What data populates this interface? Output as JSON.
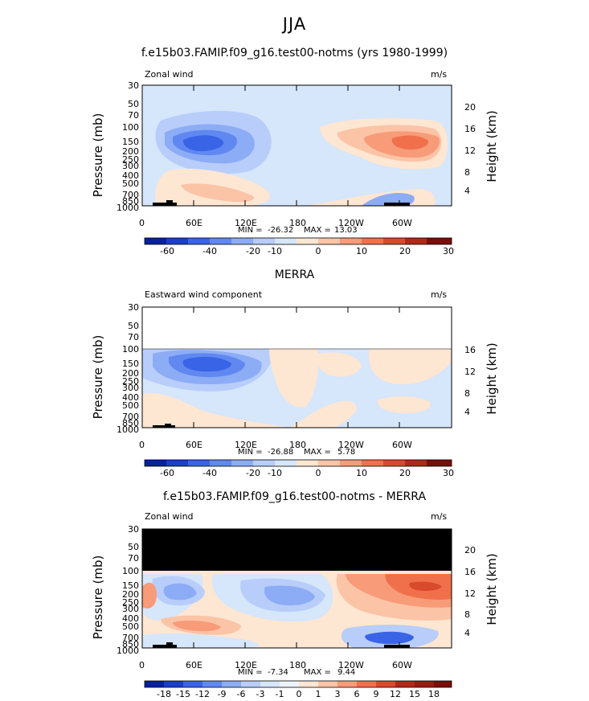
{
  "title": "JJA",
  "x_ticks": [
    "0",
    "60E",
    "120E",
    "180",
    "120W",
    "60W"
  ],
  "colors": {
    "dn60": "#08219c",
    "dn50": "#1c3fc8",
    "dn40": "#3a64e6",
    "dn30": "#6088f0",
    "dn20": "#8cacf6",
    "dn10": "#b8cdfa",
    "dn0": "#d6e6fb",
    "up0": "#fde6d2",
    "up10": "#fbc4a6",
    "up20": "#f79b78",
    "up30": "#f0704c",
    "up40": "#d84a2c",
    "up50": "#b02a18",
    "up60": "#7a0e0a"
  },
  "panels": [
    {
      "title": "f.e15b03.FAMIP.f09_g16.test00-notms (yrs 1980-1999)",
      "left_text": "Zonal wind",
      "right_text": "m/s",
      "y_label": "Pressure (mb)",
      "y2_label": "Height (km)",
      "p_ticks": [
        "30",
        "50",
        "70",
        "100",
        "150",
        "200",
        "250",
        "300",
        "400",
        "500",
        "700",
        "850",
        "1000"
      ],
      "h_ticks": [
        "20",
        "16",
        "12",
        "8",
        "4"
      ],
      "min_label": "MIN =",
      "min_value": "-26.32",
      "max_label": "MAX =",
      "max_value": "13.03",
      "colorbar": [
        "-60",
        "-40",
        "-20",
        "-10",
        "0",
        "10",
        "20",
        "30"
      ],
      "chart_data": {
        "type": "heatmap",
        "variable": "Zonal wind",
        "units": "m/s",
        "season": "JJA",
        "min": -26.32,
        "max": 13.03,
        "x_range": [
          "0",
          "360"
        ],
        "y_range_mb": [
          30,
          1000
        ]
      }
    },
    {
      "title": "MERRA",
      "left_text": "Eastward wind component",
      "right_text": "m/s",
      "y_label": "Pressure (mb)",
      "y2_label": "Height (km)",
      "p_ticks": [
        "30",
        "50",
        "70",
        "100",
        "150",
        "200",
        "250",
        "300",
        "400",
        "500",
        "700",
        "850",
        "1000"
      ],
      "h_ticks": [
        "16",
        "12",
        "8",
        "4"
      ],
      "min_label": "MIN =",
      "min_value": "-26.88",
      "max_label": "MAX =",
      "max_value": "5.78",
      "colorbar": [
        "-60",
        "-40",
        "-20",
        "-10",
        "0",
        "10",
        "20",
        "30"
      ],
      "chart_data": {
        "type": "heatmap",
        "variable": "Eastward wind component",
        "units": "m/s",
        "season": "JJA",
        "min": -26.88,
        "max": 5.78,
        "x_range": [
          "0",
          "360"
        ],
        "y_range_mb": [
          30,
          1000
        ]
      }
    },
    {
      "title": "f.e15b03.FAMIP.f09_g16.test00-notms - MERRA",
      "left_text": "Zonal wind",
      "right_text": "m/s",
      "y_label": "Pressure (mb)",
      "y2_label": "Height (km)",
      "p_ticks": [
        "30",
        "50",
        "70",
        "100",
        "150",
        "200",
        "250",
        "300",
        "400",
        "500",
        "700",
        "850",
        "1000"
      ],
      "h_ticks": [
        "20",
        "16",
        "12",
        "8",
        "4"
      ],
      "min_label": "MIN =",
      "min_value": "-7.34",
      "max_label": "MAX =",
      "max_value": "9.44",
      "colorbar": [
        "-18",
        "-15",
        "-12",
        "-9",
        "-6",
        "-3",
        "-1",
        "0",
        "1",
        "3",
        "6",
        "9",
        "12",
        "15",
        "18"
      ],
      "chart_data": {
        "type": "heatmap",
        "variable": "Zonal wind (difference)",
        "units": "m/s",
        "season": "JJA",
        "min": -7.34,
        "max": 9.44,
        "x_range": [
          "0",
          "360"
        ],
        "y_range_mb": [
          30,
          1000
        ]
      }
    }
  ]
}
